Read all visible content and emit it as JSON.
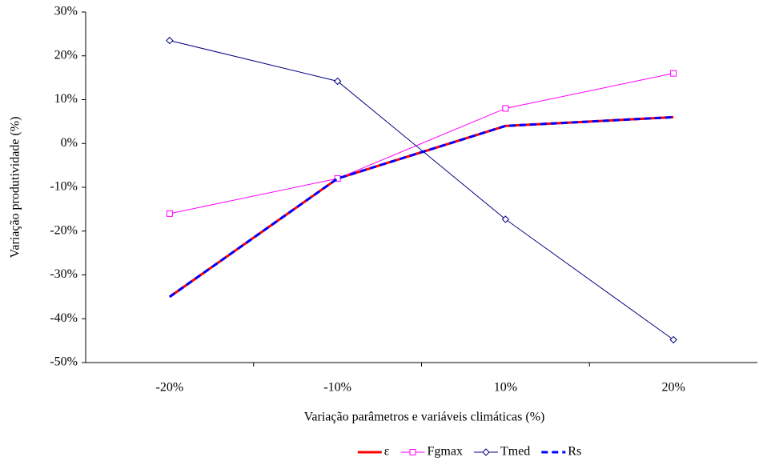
{
  "chart_data": {
    "type": "line",
    "x_label": "Variação parâmetros e variáveis climáticas (%)",
    "y_label": "Variação produtividade (%)",
    "categories": [
      "-20%",
      "-10%",
      "10%",
      "20%"
    ],
    "ylim": [
      -50,
      30
    ],
    "yticks": [
      {
        "value": -50,
        "label": "-50%"
      },
      {
        "value": -40,
        "label": "-40%"
      },
      {
        "value": -30,
        "label": "-30%"
      },
      {
        "value": -20,
        "label": "-20%"
      },
      {
        "value": -10,
        "label": "-10%"
      },
      {
        "value": 0,
        "label": "0%"
      },
      {
        "value": 10,
        "label": "10%"
      },
      {
        "value": 20,
        "label": "20%"
      },
      {
        "value": 30,
        "label": "30%"
      }
    ],
    "grid": false,
    "legend": "bottom",
    "series": [
      {
        "name": "ε",
        "color": "#ff0000",
        "width": 3,
        "dashed": false,
        "marker": null,
        "values": [
          -35,
          -8,
          4,
          6
        ]
      },
      {
        "name": "Fgmax",
        "color": "#ff00ff",
        "width": 1,
        "dashed": false,
        "marker": "square",
        "values": [
          -16,
          -8,
          8,
          16
        ]
      },
      {
        "name": "Tmed",
        "color": "#000080",
        "width": 1,
        "dashed": false,
        "marker": "diamond",
        "values": [
          23.5,
          14.2,
          -17.3,
          -44.8
        ]
      },
      {
        "name": "Rs",
        "color": "#0000ff",
        "width": 3,
        "dashed": true,
        "marker": null,
        "values": [
          -35,
          -8,
          4,
          6
        ]
      }
    ]
  }
}
